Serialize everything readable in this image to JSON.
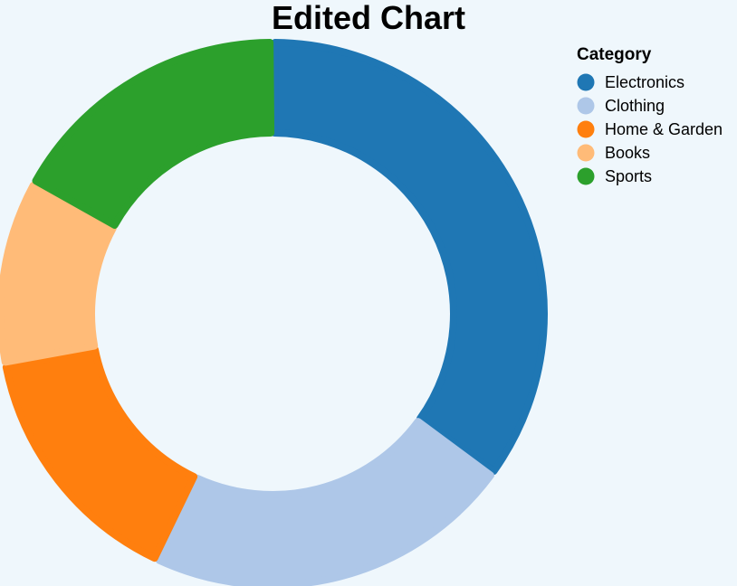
{
  "chart_data": {
    "type": "pie",
    "title": "Edited Chart",
    "donut": true,
    "legend": {
      "title": "Category",
      "position": "top-right"
    },
    "categories": [
      "Electronics",
      "Clothing",
      "Home & Garden",
      "Books",
      "Sports"
    ],
    "values": [
      35,
      22,
      15,
      11,
      17
    ],
    "colors": [
      "#1f77b4",
      "#aec7e8",
      "#ff7f0e",
      "#ffbb78",
      "#2ca02c"
    ]
  }
}
